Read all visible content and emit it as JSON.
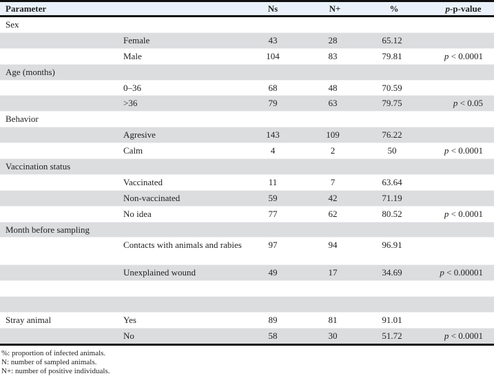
{
  "headers": [
    "Parameter",
    "",
    "Ns",
    "N+",
    "%",
    "p-value"
  ],
  "rows": [
    [
      "Sex",
      "",
      "",
      "",
      "",
      ""
    ],
    [
      "",
      "Female",
      "43",
      "28",
      "65.12",
      ""
    ],
    [
      "",
      "Male",
      "104",
      "83",
      "79.81",
      "< 0.0001"
    ],
    [
      "Age (months)",
      "",
      "",
      "",
      "",
      ""
    ],
    [
      "",
      "0–36",
      "68",
      "48",
      "70.59",
      ""
    ],
    [
      "",
      ">36",
      "79",
      "63",
      "79.75",
      "< 0.05"
    ],
    [
      "Behavior",
      "",
      "",
      "",
      "",
      ""
    ],
    [
      "",
      "Agresive",
      "143",
      "109",
      "76.22",
      ""
    ],
    [
      "",
      "Calm",
      "4",
      "2",
      "50",
      "< 0.0001"
    ],
    [
      "Vaccination status",
      "",
      "",
      "",
      "",
      ""
    ],
    [
      "",
      "Vaccinated",
      "11",
      "7",
      "63.64",
      ""
    ],
    [
      "",
      "Non-vaccinated",
      "59",
      "42",
      "71.19",
      ""
    ],
    [
      "",
      "No idea",
      "77",
      "62",
      "80.52",
      "< 0.0001"
    ],
    [
      "Month before sampling",
      "",
      "",
      "",
      "",
      ""
    ],
    [
      "",
      "Contacts with animals and rabies",
      "97",
      "94",
      "96.91",
      ""
    ],
    [
      "",
      "Unexplained wound",
      "49",
      "17",
      "34.69",
      "< 0.00001"
    ],
    [
      "",
      "",
      "",
      "",
      "",
      ""
    ],
    [
      "",
      "",
      "",
      "",
      "",
      ""
    ],
    [
      "Stray animal",
      "Yes",
      "89",
      "81",
      "91.01",
      ""
    ],
    [
      "",
      "No",
      "58",
      "30",
      "51.72",
      "< 0.0001"
    ]
  ],
  "footnotes": [
    "%: proportion of infected animals.",
    "N: number of sampled animals.",
    "N+: number of positive individuals."
  ]
}
